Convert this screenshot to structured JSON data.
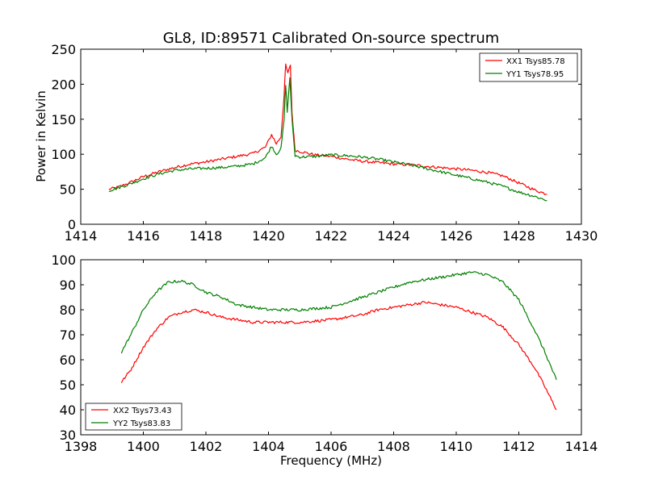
{
  "figure": {
    "title": "GL8, ID:89571 Calibrated On-source spectrum",
    "background": "#ffffff"
  },
  "chart_data": [
    {
      "type": "line",
      "title": "GL8, ID:89571 Calibrated On-source spectrum",
      "xlabel": "",
      "ylabel": "Power in Kelvin",
      "xlim": [
        1414,
        1430
      ],
      "ylim": [
        0,
        250
      ],
      "xticks": [
        "1414",
        "1416",
        "1418",
        "1420",
        "1422",
        "1424",
        "1426",
        "1428",
        "1430"
      ],
      "yticks": [
        "0",
        "50",
        "100",
        "150",
        "200",
        "250"
      ],
      "legend_position": "top-right",
      "grid": false,
      "series": [
        {
          "name": "XX1 Tsys85.78",
          "color": "#ff0000",
          "points": [
            [
              1414.9,
              50
            ],
            [
              1415.2,
              53
            ],
            [
              1415.6,
              60
            ],
            [
              1416.0,
              68
            ],
            [
              1416.5,
              75
            ],
            [
              1417.0,
              81
            ],
            [
              1417.5,
              86
            ],
            [
              1418.0,
              89
            ],
            [
              1418.5,
              93
            ],
            [
              1419.0,
              97
            ],
            [
              1419.5,
              101
            ],
            [
              1419.9,
              110
            ],
            [
              1420.1,
              128
            ],
            [
              1420.25,
              115
            ],
            [
              1420.4,
              125
            ],
            [
              1420.5,
              185
            ],
            [
              1420.55,
              228
            ],
            [
              1420.62,
              215
            ],
            [
              1420.7,
              228
            ],
            [
              1420.75,
              160
            ],
            [
              1420.85,
              106
            ],
            [
              1421.0,
              104
            ],
            [
              1421.5,
              99
            ],
            [
              1422.0,
              97
            ],
            [
              1422.5,
              93
            ],
            [
              1423.0,
              90
            ],
            [
              1423.5,
              88
            ],
            [
              1424.0,
              86
            ],
            [
              1424.5,
              85
            ],
            [
              1425.0,
              83
            ],
            [
              1425.5,
              81
            ],
            [
              1426.0,
              79
            ],
            [
              1426.5,
              77
            ],
            [
              1427.0,
              74
            ],
            [
              1427.5,
              69
            ],
            [
              1428.0,
              59
            ],
            [
              1428.5,
              49
            ],
            [
              1428.9,
              43
            ]
          ]
        },
        {
          "name": "YY1 Tsys78.95",
          "color": "#008000",
          "points": [
            [
              1414.9,
              48
            ],
            [
              1415.2,
              52
            ],
            [
              1415.6,
              58
            ],
            [
              1416.0,
              65
            ],
            [
              1416.5,
              72
            ],
            [
              1417.0,
              77
            ],
            [
              1417.5,
              79
            ],
            [
              1418.0,
              80
            ],
            [
              1418.5,
              81
            ],
            [
              1419.0,
              83
            ],
            [
              1419.5,
              86
            ],
            [
              1419.9,
              95
            ],
            [
              1420.1,
              112
            ],
            [
              1420.25,
              100
            ],
            [
              1420.4,
              108
            ],
            [
              1420.5,
              150
            ],
            [
              1420.55,
              200
            ],
            [
              1420.6,
              160
            ],
            [
              1420.68,
              210
            ],
            [
              1420.75,
              150
            ],
            [
              1420.85,
              98
            ],
            [
              1421.0,
              96
            ],
            [
              1421.5,
              97
            ],
            [
              1422.0,
              99
            ],
            [
              1422.5,
              98
            ],
            [
              1423.0,
              96
            ],
            [
              1423.5,
              93
            ],
            [
              1424.0,
              89
            ],
            [
              1424.5,
              85
            ],
            [
              1425.0,
              80
            ],
            [
              1425.5,
              75
            ],
            [
              1426.0,
              70
            ],
            [
              1426.5,
              65
            ],
            [
              1427.0,
              60
            ],
            [
              1427.5,
              54
            ],
            [
              1428.0,
              46
            ],
            [
              1428.5,
              40
            ],
            [
              1428.9,
              34
            ]
          ]
        }
      ]
    },
    {
      "type": "line",
      "title": "",
      "xlabel": "Frequency (MHz)",
      "ylabel": "",
      "xlim": [
        1398,
        1414
      ],
      "ylim": [
        30,
        100
      ],
      "xticks": [
        "1398",
        "1400",
        "1402",
        "1404",
        "1406",
        "1408",
        "1410",
        "1412",
        "1414"
      ],
      "yticks": [
        "30",
        "40",
        "50",
        "60",
        "70",
        "80",
        "90",
        "100"
      ],
      "legend_position": "bottom-left",
      "grid": false,
      "series": [
        {
          "name": "XX2 Tsys73.43",
          "color": "#ff0000",
          "points": [
            [
              1399.3,
              51
            ],
            [
              1399.6,
              56
            ],
            [
              1400.0,
              65
            ],
            [
              1400.4,
              72
            ],
            [
              1400.8,
              77
            ],
            [
              1401.2,
              79
            ],
            [
              1401.6,
              80
            ],
            [
              1402.0,
              79
            ],
            [
              1402.5,
              77
            ],
            [
              1403.0,
              76
            ],
            [
              1403.5,
              75
            ],
            [
              1404.0,
              75
            ],
            [
              1404.5,
              75
            ],
            [
              1405.0,
              75
            ],
            [
              1405.5,
              75.5
            ],
            [
              1406.0,
              76
            ],
            [
              1406.5,
              77
            ],
            [
              1407.0,
              78
            ],
            [
              1407.5,
              80
            ],
            [
              1408.0,
              81
            ],
            [
              1408.5,
              82
            ],
            [
              1409.0,
              83
            ],
            [
              1409.5,
              82
            ],
            [
              1410.0,
              81
            ],
            [
              1410.5,
              79
            ],
            [
              1411.0,
              77
            ],
            [
              1411.5,
              73
            ],
            [
              1412.0,
              66
            ],
            [
              1412.5,
              57
            ],
            [
              1412.8,
              50
            ],
            [
              1413.0,
              45
            ],
            [
              1413.2,
              40
            ]
          ]
        },
        {
          "name": "YY2 Tsys83.83",
          "color": "#008000",
          "points": [
            [
              1399.3,
              63
            ],
            [
              1399.6,
              70
            ],
            [
              1400.0,
              80
            ],
            [
              1400.4,
              87
            ],
            [
              1400.8,
              91
            ],
            [
              1401.2,
              91.5
            ],
            [
              1401.6,
              90
            ],
            [
              1402.0,
              87
            ],
            [
              1402.5,
              85
            ],
            [
              1403.0,
              82
            ],
            [
              1403.5,
              81
            ],
            [
              1404.0,
              80
            ],
            [
              1404.5,
              80
            ],
            [
              1405.0,
              80
            ],
            [
              1405.5,
              80.5
            ],
            [
              1406.0,
              81
            ],
            [
              1406.5,
              83
            ],
            [
              1407.0,
              85
            ],
            [
              1407.5,
              87
            ],
            [
              1408.0,
              89
            ],
            [
              1408.5,
              91
            ],
            [
              1409.0,
              92
            ],
            [
              1409.5,
              93
            ],
            [
              1410.0,
              94
            ],
            [
              1410.5,
              95
            ],
            [
              1411.0,
              94
            ],
            [
              1411.5,
              91
            ],
            [
              1412.0,
              84
            ],
            [
              1412.5,
              72
            ],
            [
              1412.8,
              64
            ],
            [
              1413.0,
              58
            ],
            [
              1413.2,
              52
            ]
          ]
        }
      ]
    }
  ]
}
